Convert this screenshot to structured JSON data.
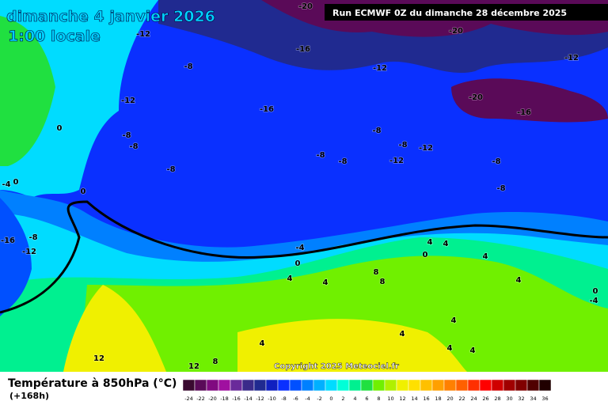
{
  "header": {
    "title": "dimanche 4 janvier 2026",
    "time": "1:00 locale",
    "run": "Run ECMWF 0Z du dimanche 28 décembre 2025"
  },
  "map": {
    "contour_labels": [
      "-20",
      "-12",
      "-20",
      "-16",
      "-12",
      "-8",
      "-12",
      "-12",
      "-20",
      "-16",
      "-16",
      "-8",
      "-8",
      "-8",
      "-8",
      "-12",
      "-8",
      "-8",
      "-12",
      "-8",
      "-8",
      "0",
      "0",
      "-4",
      "0",
      "-8",
      "-16",
      "-8",
      "-12",
      "-4",
      "0",
      "4",
      "0",
      "4",
      "4",
      "4",
      "4",
      "8",
      "8",
      "4",
      "0",
      "-4",
      "4",
      "4",
      "4",
      "4",
      "4",
      "12",
      "12",
      "8"
    ],
    "copyright": "Copyright 2025 Meteociel.fr"
  },
  "footer": {
    "title": "Température à 850hPa (°C)",
    "lead": "(+168h)"
  },
  "legend": {
    "labels": [
      -24,
      -22,
      -20,
      -18,
      -16,
      -14,
      -12,
      -10,
      -8,
      -6,
      -4,
      -2,
      0,
      2,
      4,
      6,
      8,
      10,
      12,
      14,
      16,
      18,
      20,
      22,
      24,
      26,
      28,
      30,
      32,
      34,
      36
    ],
    "colors": [
      "#3a0a30",
      "#5a0a58",
      "#800a80",
      "#a010a0",
      "#6a2a9a",
      "#3a2a8a",
      "#202a90",
      "#1020c0",
      "#0a30ff",
      "#0050ff",
      "#0080ff",
      "#00b0ff",
      "#00dcff",
      "#00ffd8",
      "#00f090",
      "#20e040",
      "#70f000",
      "#b0f000",
      "#f0f000",
      "#ffe000",
      "#ffc000",
      "#ffa000",
      "#ff8000",
      "#ff6000",
      "#ff3000",
      "#ff0000",
      "#d00000",
      "#a00000",
      "#800000",
      "#500000",
      "#200000"
    ]
  }
}
